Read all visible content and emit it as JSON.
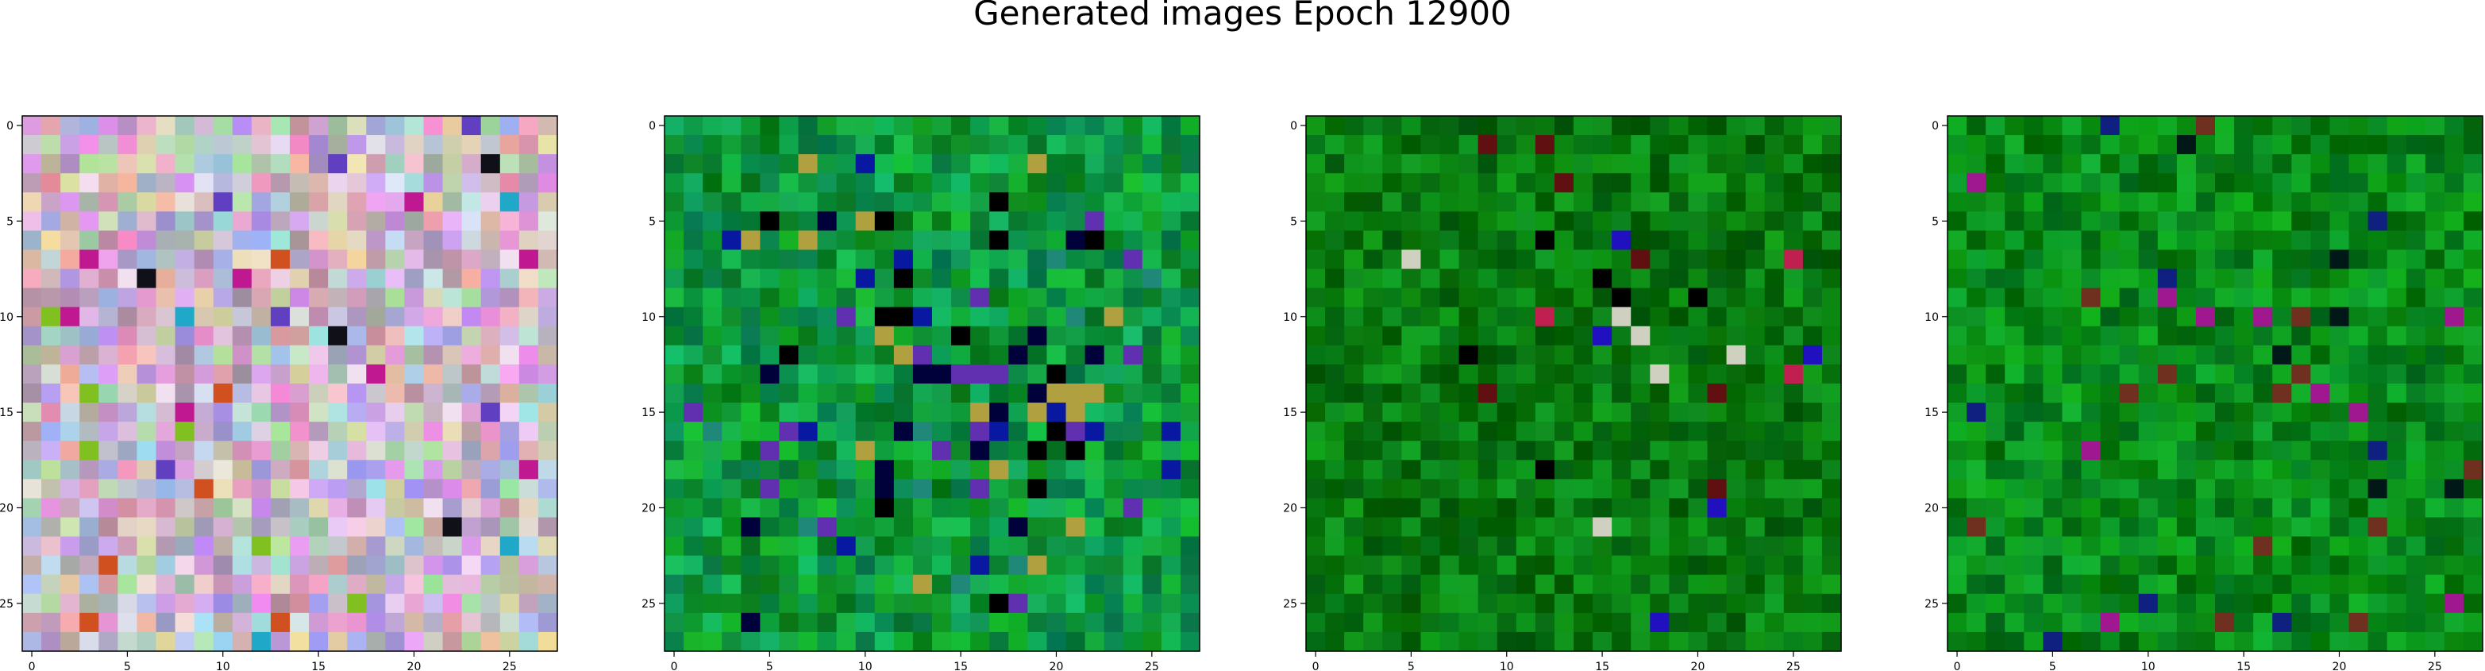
{
  "title": "Generated images Epoch 12900",
  "chart_data": [
    {
      "type": "heatmap",
      "title": "",
      "xlabel": "",
      "ylabel": "",
      "size": 28,
      "xlim": [
        -0.5,
        27.5
      ],
      "ylim": [
        27.5,
        -0.5
      ],
      "xticks": [
        0,
        5,
        10,
        15,
        20,
        25
      ],
      "yticks": [
        0,
        5,
        10,
        15,
        20,
        25
      ],
      "palette_description": "pastel multicolor noise (pinks, lilacs, light greens, greys) with scattered saturated pixels",
      "base_color": "#c8b8c8",
      "accent_colors": [
        "#101018",
        "#c01890",
        "#20a8c8",
        "#6040c0",
        "#d05020",
        "#80c020",
        "#f0e0f0"
      ],
      "grid": false
    },
    {
      "type": "heatmap",
      "title": "",
      "xlabel": "",
      "ylabel": "",
      "size": 28,
      "xlim": [
        -0.5,
        27.5
      ],
      "ylim": [
        27.5,
        -0.5
      ],
      "xticks": [
        0,
        5,
        10,
        15,
        20,
        25
      ],
      "yticks": [
        0,
        5,
        10,
        15,
        20,
        25
      ],
      "palette_description": "green dominated noise with blue, purple, teal and black pixels in the centre region",
      "base_color": "#109838",
      "accent_colors": [
        "#000000",
        "#0818a0",
        "#6030b0",
        "#208878",
        "#00003a",
        "#b0a040"
      ],
      "grid": false
    },
    {
      "type": "heatmap",
      "title": "",
      "xlabel": "",
      "ylabel": "",
      "size": 28,
      "xlim": [
        -0.5,
        27.5
      ],
      "ylim": [
        27.5,
        -0.5
      ],
      "xticks": [
        0,
        5,
        10,
        15,
        20,
        25
      ],
      "yticks": [
        0,
        5,
        10,
        15,
        20,
        25
      ],
      "palette_description": "dark green noise with a few blue, red, white and black pixels near the centre",
      "base_color": "#0a7a10",
      "accent_colors": [
        "#000000",
        "#2010c0",
        "#c02050",
        "#d0d0c0",
        "#601010"
      ],
      "grid": false
    },
    {
      "type": "heatmap",
      "title": "",
      "xlabel": "",
      "ylabel": "",
      "size": 28,
      "xlim": [
        -0.5,
        27.5
      ],
      "ylim": [
        27.5,
        -0.5
      ],
      "xticks": [
        0,
        5,
        10,
        15,
        20,
        25
      ],
      "yticks": [
        0,
        5,
        10,
        15,
        20,
        25
      ],
      "palette_description": "green noise with a few dark, blue, magenta and brown pixels",
      "base_color": "#0a8a18",
      "accent_colors": [
        "#001818",
        "#102080",
        "#a01890",
        "#703020"
      ],
      "grid": false
    }
  ]
}
